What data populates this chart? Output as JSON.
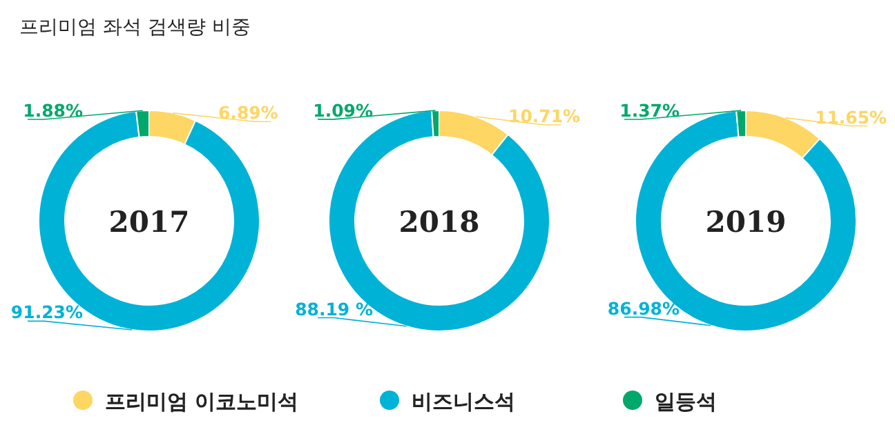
{
  "chart_data": [
    {
      "type": "donut",
      "title": "2017",
      "annotations": [
        "프리미엄 좌석 검색량 비중"
      ],
      "categories": [
        "프리미엄 이코노미석",
        "비즈니스석",
        "일등석"
      ],
      "values": [
        6.89,
        91.23,
        1.88
      ],
      "value_labels": [
        "6.89%",
        "91.23%",
        "1.88%"
      ],
      "colors": [
        "#fdd663",
        "#00b2d6",
        "#00a86b"
      ],
      "legend": "bottom"
    },
    {
      "type": "donut",
      "title": "2018",
      "categories": [
        null,
        null,
        null
      ],
      "values": [
        10.71,
        88.19,
        1.09
      ],
      "value_labels": [
        "10.71%",
        "88.19 %",
        "1.09%"
      ],
      "colors": [
        "#fdd663",
        "#00b2d6",
        "#00a86b"
      ]
    },
    {
      "type": "donut",
      "title": "2019",
      "categories": [
        null,
        null,
        null
      ],
      "values": [
        11.65,
        86.98,
        1.37
      ],
      "value_labels": [
        "11.65%",
        "86.98%",
        "1.37%"
      ],
      "colors": [
        "#fdd663",
        "#00b2d6",
        "#00a86b"
      ]
    }
  ]
}
